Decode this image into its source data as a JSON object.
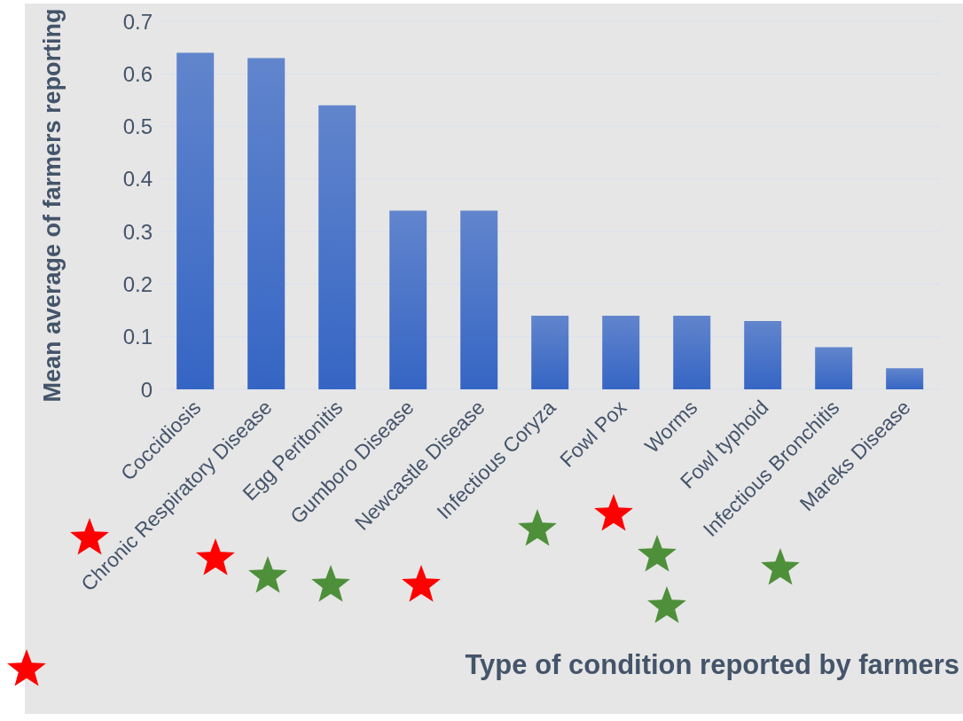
{
  "chart_data": {
    "type": "bar",
    "xlabel": "Type of condition reported by farmers",
    "ylabel": "Mean average of farmers reporting",
    "categories": [
      "Coccidiosis",
      "Chronic Respiratory Disease",
      "Egg Peritonitis",
      "Gumboro Disease",
      "Newcastle Disease",
      "Infectious Coryza",
      "Fowl Pox",
      "Worms",
      "Fowl typhoid",
      "Infectious Bronchitis",
      "Mareks Disease"
    ],
    "values": [
      0.64,
      0.63,
      0.54,
      0.34,
      0.34,
      0.14,
      0.14,
      0.14,
      0.13,
      0.08,
      0.04
    ],
    "color": "#3565c4",
    "ylim": [
      0,
      0.7
    ],
    "yticks": [
      0,
      0.1,
      0.2,
      0.3,
      0.4,
      0.5,
      0.6,
      0.7
    ],
    "grid": "y"
  }
}
